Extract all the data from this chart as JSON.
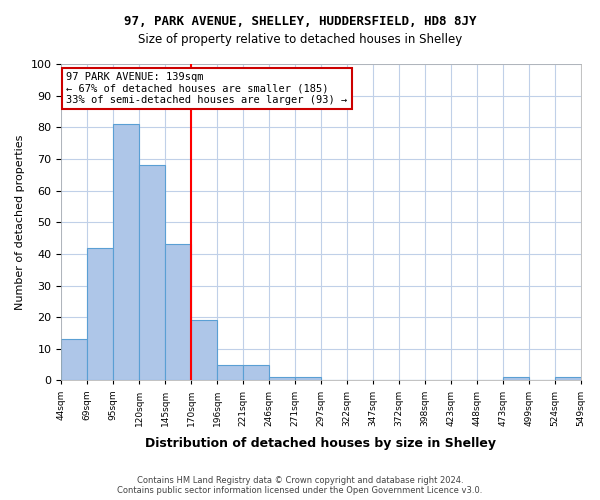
{
  "title1": "97, PARK AVENUE, SHELLEY, HUDDERSFIELD, HD8 8JY",
  "title2": "Size of property relative to detached houses in Shelley",
  "xlabel": "Distribution of detached houses by size in Shelley",
  "ylabel": "Number of detached properties",
  "bin_labels": [
    "44sqm",
    "69sqm",
    "95sqm",
    "120sqm",
    "145sqm",
    "170sqm",
    "196sqm",
    "221sqm",
    "246sqm",
    "271sqm",
    "297sqm",
    "322sqm",
    "347sqm",
    "372sqm",
    "398sqm",
    "423sqm",
    "448sqm",
    "473sqm",
    "499sqm",
    "524sqm",
    "549sqm"
  ],
  "bar_values": [
    13,
    42,
    81,
    68,
    43,
    19,
    5,
    5,
    1,
    1,
    0,
    0,
    0,
    0,
    0,
    0,
    0,
    1,
    0,
    1
  ],
  "bar_color": "#aec6e8",
  "bar_edge_color": "#5a9fd4",
  "red_line_bin": 4,
  "ylim": [
    0,
    100
  ],
  "yticks": [
    0,
    10,
    20,
    30,
    40,
    50,
    60,
    70,
    80,
    90,
    100
  ],
  "annotation_title": "97 PARK AVENUE: 139sqm",
  "annotation_line1": "← 67% of detached houses are smaller (185)",
  "annotation_line2": "33% of semi-detached houses are larger (93) →",
  "annotation_box_color": "#ffffff",
  "annotation_box_edge": "#cc0000",
  "footer1": "Contains HM Land Registry data © Crown copyright and database right 2024.",
  "footer2": "Contains public sector information licensed under the Open Government Licence v3.0.",
  "background_color": "#ffffff",
  "grid_color": "#c0d0e8"
}
